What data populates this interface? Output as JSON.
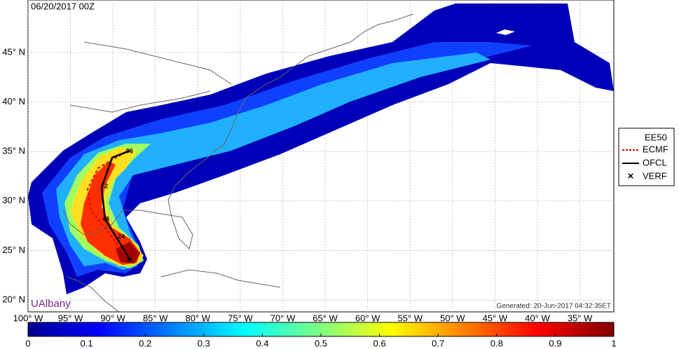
{
  "map": {
    "title": "06/20/2017 00Z",
    "xlim": [
      -100,
      -31
    ],
    "ylim": [
      18.8,
      50.3
    ],
    "xticks": [
      {
        "value": -100,
        "label": "100° W"
      },
      {
        "value": -95,
        "label": "95° W"
      },
      {
        "value": -90,
        "label": "90° W"
      },
      {
        "value": -85,
        "label": "85° W"
      },
      {
        "value": -80,
        "label": "80° W"
      },
      {
        "value": -75,
        "label": "75° W"
      },
      {
        "value": -70,
        "label": "70° W"
      },
      {
        "value": -65,
        "label": "65° W"
      },
      {
        "value": -60,
        "label": "60° W"
      },
      {
        "value": -55,
        "label": "55° W"
      },
      {
        "value": -50,
        "label": "50° W"
      },
      {
        "value": -45,
        "label": "45° W"
      },
      {
        "value": -40,
        "label": "40° W"
      },
      {
        "value": -35,
        "label": "35° W"
      }
    ],
    "yticks": [
      {
        "value": 20,
        "label": "20° N"
      },
      {
        "value": 25,
        "label": "25° N"
      },
      {
        "value": 30,
        "label": "30° N"
      },
      {
        "value": 35,
        "label": "35° N"
      },
      {
        "value": 40,
        "label": "40° N"
      },
      {
        "value": 45,
        "label": "45° N"
      }
    ],
    "track_labels": [
      "24",
      "48",
      "72",
      "96"
    ],
    "watermark": "UAlbany",
    "generated": "Generated: 20-Jun-2017 04:32:35ET",
    "legend": {
      "title": "EE50",
      "entries": [
        "ECMF",
        "OFCL",
        "VERF"
      ]
    },
    "colorbar": {
      "lim": [
        0,
        1
      ],
      "ticks": [
        0,
        0.1,
        0.2,
        0.3,
        0.4,
        0.5,
        0.6,
        0.7,
        0.8,
        0.9,
        1
      ]
    }
  }
}
